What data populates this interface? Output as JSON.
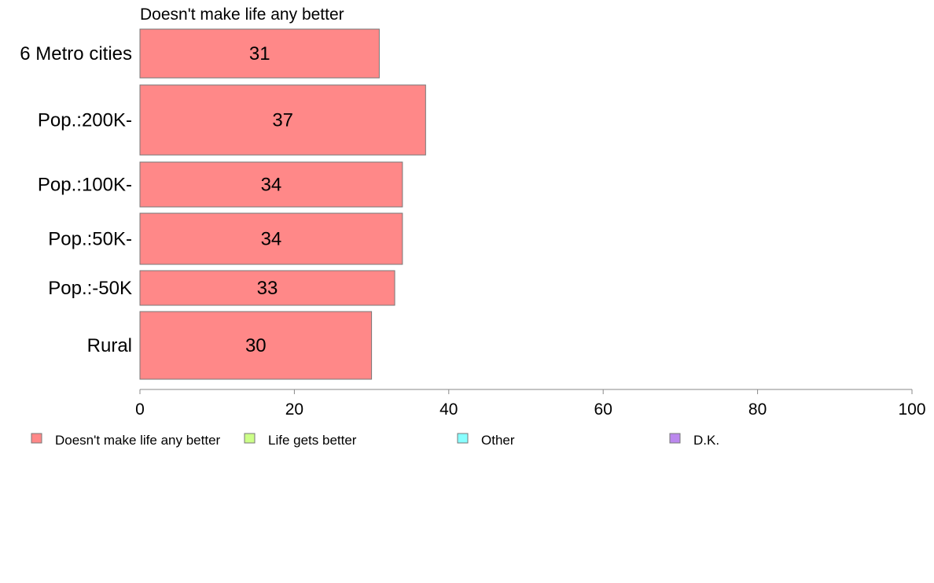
{
  "chart_data": {
    "type": "bar",
    "orientation": "horizontal",
    "title": "Doesn't make life any better",
    "xlabel": "",
    "ylabel": "",
    "xlim": [
      0,
      100
    ],
    "ticks": [
      0,
      20,
      40,
      60,
      80,
      100
    ],
    "grid": false,
    "legend_position": "bottom",
    "categories": [
      "6 Metro cities",
      "Pop.:200K-",
      "Pop.:100K-",
      "Pop.:50K-",
      "Pop.:-50K",
      "Rural"
    ],
    "series": [
      {
        "name": "Doesn't make life any better",
        "color": "#ff8888",
        "values": [
          31,
          37,
          34,
          34,
          33,
          30
        ],
        "labels": [
          "31",
          "37",
          "34",
          "34",
          "33",
          "30"
        ]
      }
    ],
    "legend": [
      {
        "label": "Doesn't make life any better",
        "color": "#ff8888"
      },
      {
        "label": "Life gets better",
        "color": "#ccff88"
      },
      {
        "label": "Other",
        "color": "#88ffff"
      },
      {
        "label": "D.K.",
        "color": "#bb88ee"
      }
    ]
  }
}
